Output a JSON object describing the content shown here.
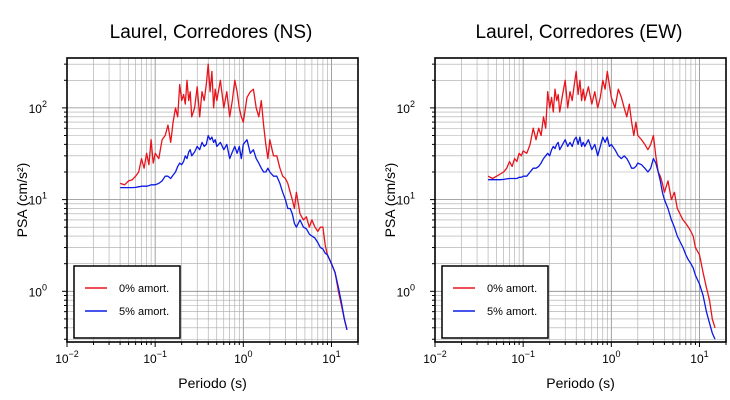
{
  "chart_data": [
    {
      "type": "line",
      "title": "Laurel, Corredores (NS)",
      "xlabel": "Periodo (s)",
      "ylabel": "PSA (cm/s²)",
      "xscale": "log",
      "yscale": "log",
      "xlim": [
        0.01,
        20
      ],
      "ylim": [
        0.28,
        350
      ],
      "xticks": [
        {
          "base": "10",
          "exp": "−2",
          "value": 0.01
        },
        {
          "base": "10",
          "exp": "−1",
          "value": 0.1
        },
        {
          "base": "10",
          "exp": "0",
          "value": 1
        },
        {
          "base": "10",
          "exp": "1",
          "value": 10
        }
      ],
      "yticks": [
        {
          "base": "10",
          "exp": "0",
          "value": 1
        },
        {
          "base": "10",
          "exp": "1",
          "value": 10
        },
        {
          "base": "10",
          "exp": "2",
          "value": 100
        }
      ],
      "grid": true,
      "legend": "bottom-left",
      "series": [
        {
          "name": "0% amort.",
          "color": "#e8141b",
          "x": [
            0.04,
            0.045,
            0.05,
            0.055,
            0.06,
            0.065,
            0.07,
            0.075,
            0.08,
            0.085,
            0.09,
            0.095,
            0.1,
            0.11,
            0.12,
            0.13,
            0.14,
            0.15,
            0.16,
            0.17,
            0.18,
            0.19,
            0.2,
            0.21,
            0.22,
            0.23,
            0.24,
            0.25,
            0.26,
            0.28,
            0.3,
            0.32,
            0.34,
            0.36,
            0.38,
            0.4,
            0.42,
            0.44,
            0.46,
            0.48,
            0.5,
            0.55,
            0.6,
            0.65,
            0.7,
            0.75,
            0.8,
            0.85,
            0.9,
            0.95,
            1.0,
            1.1,
            1.2,
            1.3,
            1.4,
            1.5,
            1.6,
            1.7,
            1.8,
            1.9,
            2.0,
            2.2,
            2.4,
            2.6,
            2.8,
            3.0,
            3.2,
            3.4,
            3.6,
            3.8,
            4.0,
            4.4,
            4.8,
            5.2,
            5.6,
            6.0,
            6.5,
            7.0,
            7.5,
            8.0,
            8.5,
            9.0,
            10,
            11,
            12,
            13,
            14,
            15
          ],
          "y": [
            15,
            14.5,
            16,
            16.5,
            18,
            20,
            28,
            22,
            32,
            24,
            45,
            25,
            32,
            28,
            45,
            50,
            65,
            42,
            70,
            100,
            80,
            180,
            120,
            140,
            110,
            200,
            120,
            150,
            80,
            100,
            170,
            80,
            150,
            120,
            180,
            300,
            150,
            250,
            100,
            160,
            120,
            200,
            100,
            150,
            80,
            120,
            200,
            150,
            100,
            80,
            70,
            130,
            150,
            160,
            100,
            80,
            120,
            65,
            40,
            28,
            45,
            30,
            30,
            22,
            18,
            17,
            15,
            12,
            10,
            8,
            12,
            7,
            6,
            6.5,
            5,
            6,
            5,
            4.5,
            5,
            5,
            3.2,
            2.5,
            2.0,
            1.6,
            1.0,
            0.7,
            0.5,
            0.38
          ]
        },
        {
          "name": "5% amort.",
          "color": "#0b1ae6",
          "x": [
            0.04,
            0.045,
            0.05,
            0.055,
            0.06,
            0.065,
            0.07,
            0.075,
            0.08,
            0.085,
            0.09,
            0.095,
            0.1,
            0.11,
            0.12,
            0.13,
            0.14,
            0.15,
            0.16,
            0.17,
            0.18,
            0.19,
            0.2,
            0.21,
            0.22,
            0.23,
            0.24,
            0.25,
            0.26,
            0.28,
            0.3,
            0.32,
            0.34,
            0.36,
            0.38,
            0.4,
            0.42,
            0.44,
            0.46,
            0.48,
            0.5,
            0.55,
            0.6,
            0.65,
            0.7,
            0.75,
            0.8,
            0.85,
            0.9,
            0.95,
            1.0,
            1.1,
            1.2,
            1.3,
            1.4,
            1.5,
            1.6,
            1.7,
            1.8,
            1.9,
            2.0,
            2.2,
            2.4,
            2.6,
            2.8,
            3.0,
            3.2,
            3.4,
            3.6,
            3.8,
            4.0,
            4.4,
            4.8,
            5.2,
            5.6,
            6.0,
            6.5,
            7.0,
            7.5,
            8.0,
            8.5,
            9.0,
            10,
            11,
            12,
            13,
            14,
            15
          ],
          "y": [
            13.5,
            13.5,
            13.5,
            13.5,
            13.6,
            13.8,
            14,
            14,
            14,
            14.2,
            14.5,
            14.5,
            14.5,
            15,
            16,
            18,
            18,
            17,
            18.5,
            20,
            23,
            25,
            24,
            26,
            30,
            28,
            33,
            35,
            30,
            33,
            38,
            35,
            42,
            38,
            40,
            50,
            45,
            48,
            42,
            45,
            38,
            42,
            35,
            40,
            28,
            33,
            38,
            32,
            38,
            28,
            40,
            45,
            32,
            35,
            28,
            25,
            22,
            20,
            20,
            22,
            20,
            18,
            18,
            15,
            12,
            10,
            8,
            8,
            7,
            5.5,
            5,
            6,
            5,
            4.8,
            4.2,
            4,
            3.8,
            3.4,
            3.0,
            2.9,
            2.6,
            2.5,
            2.0,
            1.6,
            1.1,
            0.75,
            0.5,
            0.38
          ]
        }
      ]
    },
    {
      "type": "line",
      "title": "Laurel, Corredores (EW)",
      "xlabel": "Periodo (s)",
      "ylabel": "PSA (cm/s²)",
      "xscale": "log",
      "yscale": "log",
      "xlim": [
        0.01,
        20
      ],
      "ylim": [
        0.28,
        350
      ],
      "xticks": [
        {
          "base": "10",
          "exp": "−2",
          "value": 0.01
        },
        {
          "base": "10",
          "exp": "−1",
          "value": 0.1
        },
        {
          "base": "10",
          "exp": "0",
          "value": 1
        },
        {
          "base": "10",
          "exp": "1",
          "value": 10
        }
      ],
      "yticks": [
        {
          "base": "10",
          "exp": "0",
          "value": 1
        },
        {
          "base": "10",
          "exp": "1",
          "value": 10
        },
        {
          "base": "10",
          "exp": "2",
          "value": 100
        }
      ],
      "grid": true,
      "legend": "bottom-left",
      "series": [
        {
          "name": "0% amort.",
          "color": "#e8141b",
          "x": [
            0.04,
            0.045,
            0.05,
            0.055,
            0.06,
            0.065,
            0.07,
            0.075,
            0.08,
            0.085,
            0.09,
            0.095,
            0.1,
            0.11,
            0.12,
            0.13,
            0.14,
            0.15,
            0.16,
            0.17,
            0.18,
            0.19,
            0.2,
            0.21,
            0.22,
            0.23,
            0.24,
            0.25,
            0.26,
            0.28,
            0.3,
            0.32,
            0.34,
            0.36,
            0.38,
            0.4,
            0.42,
            0.44,
            0.46,
            0.48,
            0.5,
            0.55,
            0.6,
            0.65,
            0.7,
            0.75,
            0.8,
            0.85,
            0.9,
            0.95,
            1.0,
            1.1,
            1.2,
            1.3,
            1.4,
            1.5,
            1.6,
            1.7,
            1.8,
            1.9,
            2.0,
            2.2,
            2.4,
            2.6,
            2.8,
            3.0,
            3.2,
            3.4,
            3.6,
            3.8,
            4.0,
            4.4,
            4.8,
            5.2,
            5.6,
            6.0,
            6.5,
            7.0,
            7.5,
            8.0,
            8.5,
            9.0,
            10,
            11,
            12,
            13,
            14,
            15
          ],
          "y": [
            18,
            17,
            18,
            19,
            20,
            22,
            26,
            23,
            28,
            26,
            32,
            30,
            34,
            32,
            40,
            60,
            45,
            60,
            50,
            80,
            60,
            150,
            100,
            130,
            90,
            160,
            120,
            140,
            90,
            140,
            200,
            100,
            150,
            120,
            180,
            250,
            140,
            200,
            120,
            160,
            120,
            170,
            110,
            150,
            100,
            130,
            200,
            160,
            250,
            180,
            130,
            100,
            160,
            130,
            100,
            80,
            110,
            70,
            50,
            70,
            50,
            45,
            40,
            35,
            40,
            50,
            30,
            20,
            18,
            15,
            12,
            16,
            10,
            12,
            8,
            7,
            6,
            5.5,
            5,
            4.5,
            4,
            3.0,
            2.5,
            1.6,
            1.1,
            0.8,
            0.5,
            0.4
          ]
        },
        {
          "name": "5% amort.",
          "color": "#0b1ae6",
          "x": [
            0.04,
            0.045,
            0.05,
            0.055,
            0.06,
            0.065,
            0.07,
            0.075,
            0.08,
            0.085,
            0.09,
            0.095,
            0.1,
            0.11,
            0.12,
            0.13,
            0.14,
            0.15,
            0.16,
            0.17,
            0.18,
            0.19,
            0.2,
            0.21,
            0.22,
            0.23,
            0.24,
            0.25,
            0.26,
            0.28,
            0.3,
            0.32,
            0.34,
            0.36,
            0.38,
            0.4,
            0.42,
            0.44,
            0.46,
            0.48,
            0.5,
            0.55,
            0.6,
            0.65,
            0.7,
            0.75,
            0.8,
            0.85,
            0.9,
            0.95,
            1.0,
            1.1,
            1.2,
            1.3,
            1.4,
            1.5,
            1.6,
            1.7,
            1.8,
            1.9,
            2.0,
            2.2,
            2.4,
            2.6,
            2.8,
            3.0,
            3.2,
            3.4,
            3.6,
            3.8,
            4.0,
            4.4,
            4.8,
            5.2,
            5.6,
            6.0,
            6.5,
            7.0,
            7.5,
            8.0,
            8.5,
            9.0,
            10,
            11,
            12,
            13,
            14,
            15
          ],
          "y": [
            16.5,
            16.5,
            16.5,
            16.5,
            16.6,
            16.8,
            17,
            17,
            17,
            17,
            17.5,
            17.5,
            18,
            18,
            20,
            22,
            22,
            23,
            25,
            28,
            30,
            32,
            30,
            35,
            38,
            36,
            40,
            42,
            35,
            40,
            45,
            38,
            42,
            38,
            45,
            48,
            40,
            48,
            38,
            42,
            38,
            45,
            35,
            40,
            30,
            38,
            48,
            42,
            48,
            38,
            40,
            35,
            30,
            28,
            30,
            28,
            25,
            22,
            22,
            23,
            25,
            24,
            22,
            20,
            22,
            28,
            25,
            20,
            16,
            12,
            10,
            8,
            6,
            5,
            4,
            3.5,
            3.0,
            2.5,
            2.2,
            2.0,
            1.8,
            1.5,
            1.2,
            0.9,
            0.6,
            0.45,
            0.35,
            0.3
          ]
        }
      ]
    }
  ]
}
